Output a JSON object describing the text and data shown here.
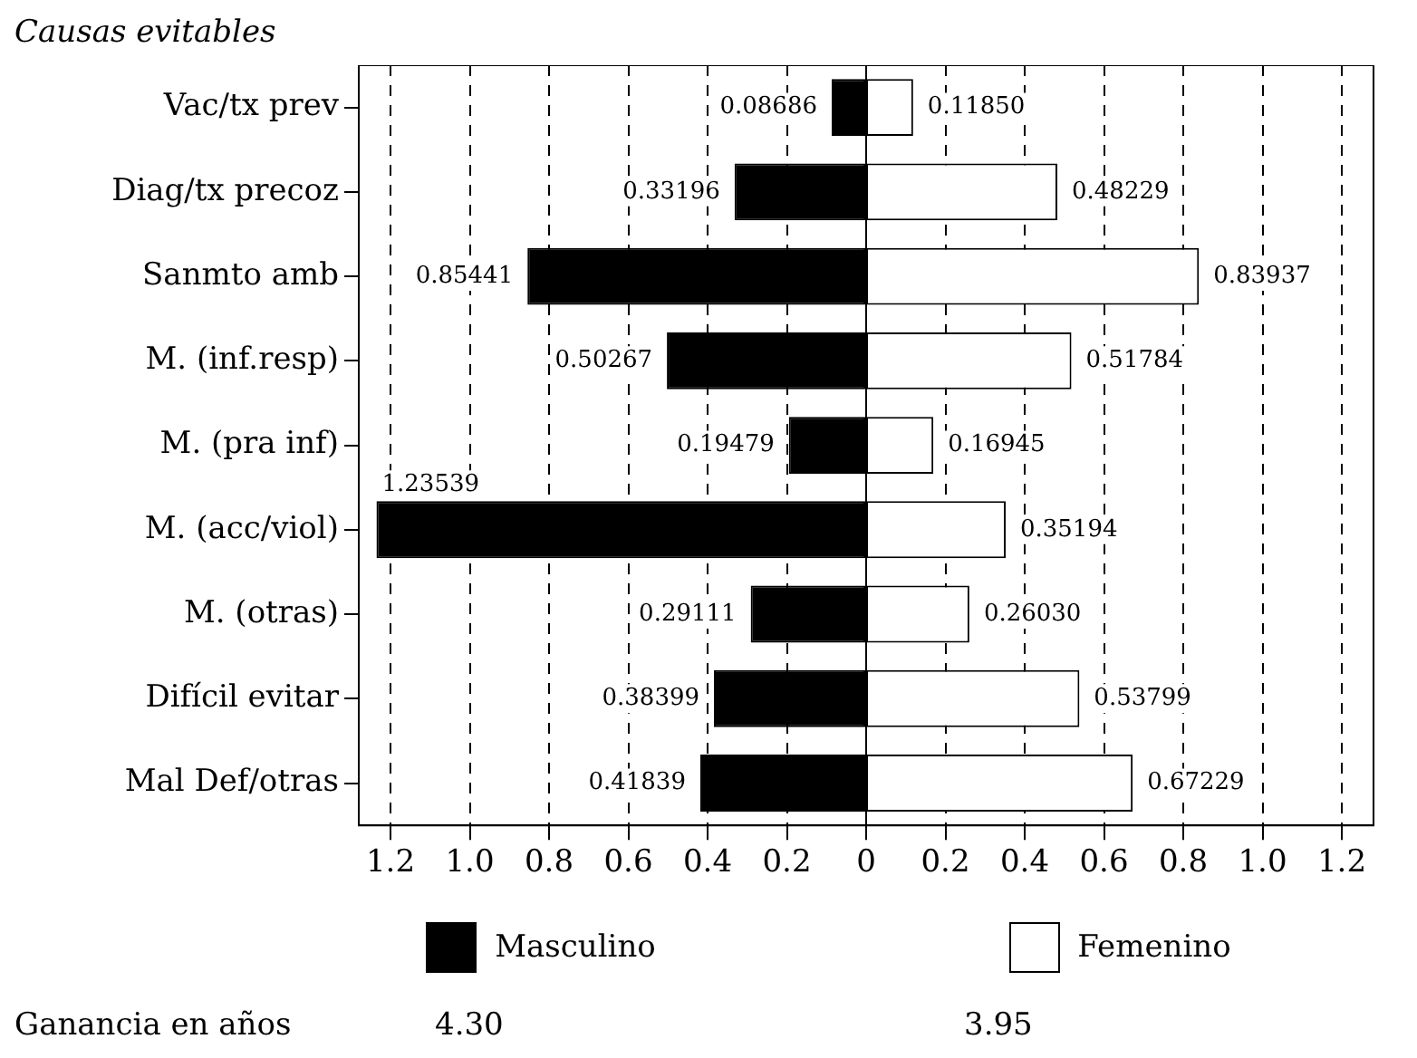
{
  "chart_data": [
    {
      "type": "bar",
      "orientation": "horizontal",
      "title": "Causas evitables",
      "categories": [
        "Vac/tx prev",
        "Diag/tx precoz",
        "Sanmto amb",
        "M. (inf.resp)",
        "M. (pra inf)",
        "M. (acc/viol)",
        "M. (otras)",
        "Difícil evitar",
        "Mal Def/otras"
      ],
      "series": [
        {
          "name": "Masculino",
          "color": "#000000",
          "values": [
            0.08686,
            0.33196,
            0.85441,
            0.50267,
            0.19479,
            1.23539,
            0.29111,
            0.38399,
            0.41839
          ]
        }
      ],
      "data_labels": true,
      "xlim": [
        1.28,
        0
      ],
      "xticks": [
        1.2,
        {
          "value": 1.0,
          "label": "1.0"
        },
        0.8,
        0.6,
        0.4,
        0.2,
        0
      ],
      "grid": "x",
      "legend": "bottom",
      "annotations": [
        "Ganancia en años",
        "4.30"
      ]
    },
    {
      "type": "bar",
      "orientation": "horizontal",
      "categories": [
        null,
        null,
        null,
        null,
        null,
        null,
        null,
        null,
        null
      ],
      "series": [
        {
          "name": "Femenino",
          "color": "#ffffff",
          "values": [
            0.1185,
            0.48229,
            0.83937,
            0.51784,
            0.16945,
            0.35194,
            0.2603,
            0.53799,
            0.67229
          ],
          "value_labels": [
            "0.11850",
            "0.48229",
            "0.83937",
            "0.51784",
            "0.16945",
            "0.35194",
            "0.26030",
            "0.53799",
            "0.67229"
          ]
        }
      ],
      "xlim": [
        0,
        1.28
      ],
      "xticks": [
        0.2,
        0.4,
        0.6,
        0.8,
        {
          "value": 1.0,
          "label": "1.0"
        },
        1.2
      ],
      "grid": "x",
      "legend": "bottom",
      "tick_labels": "x",
      "annotations": [
        "3.95"
      ]
    }
  ]
}
